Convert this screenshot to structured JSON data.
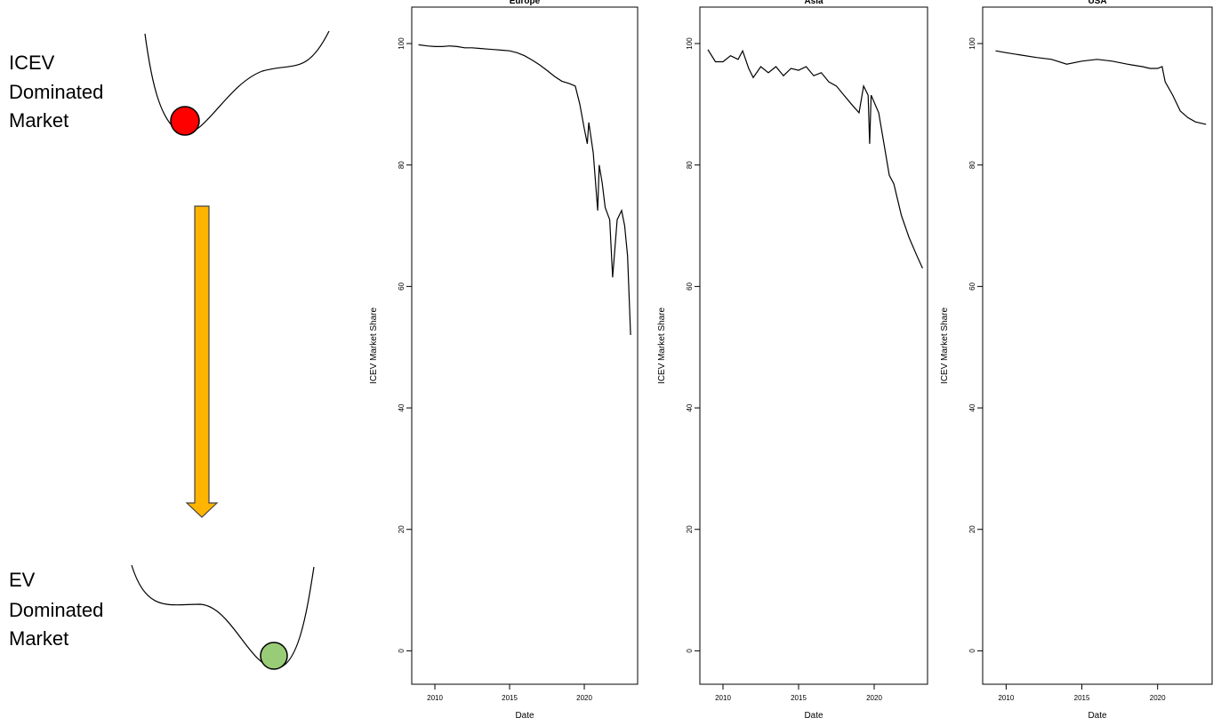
{
  "diagram": {
    "top_label": [
      "ICEV",
      "Dominated",
      "Market"
    ],
    "bottom_label": [
      "EV",
      "Dominated",
      "Market"
    ]
  },
  "chart_data": [
    {
      "type": "line",
      "title": "Europe",
      "x_label": "Date",
      "y_label": "ICEV Market Share",
      "color": "#000000",
      "x": [
        2008.9,
        2009.5,
        2010,
        2010.5,
        2011,
        2011.5,
        2012,
        2012.5,
        2013,
        2013.5,
        2014,
        2014.5,
        2015,
        2015.5,
        2016,
        2016.5,
        2017,
        2017.5,
        2018,
        2018.5,
        2019,
        2019.4,
        2019.7,
        2020.0,
        2020.2,
        2020.3,
        2020.6,
        2020.9,
        2021.0,
        2021.2,
        2021.4,
        2021.7,
        2021.9,
        2022.2,
        2022.5,
        2022.7,
        2022.9,
        2023.1
      ],
      "values": [
        99.8,
        99.6,
        99.5,
        99.5,
        99.6,
        99.5,
        99.3,
        99.3,
        99.2,
        99.1,
        99.0,
        98.9,
        98.8,
        98.5,
        98.0,
        97.3,
        96.5,
        95.6,
        94.6,
        93.8,
        93.4,
        93.0,
        90.0,
        86.0,
        83.5,
        87.0,
        82.0,
        72.5,
        80.0,
        77.0,
        73.0,
        71.0,
        61.5,
        71.0,
        72.5,
        70.0,
        65.0,
        52.0
      ],
      "xlim": [
        2008.45,
        2023.57
      ],
      "ylim": [
        -5.5,
        106
      ],
      "xticks": [
        2010,
        2015,
        2020
      ],
      "yticks": [
        0,
        20,
        40,
        60,
        80,
        100
      ]
    },
    {
      "type": "line",
      "title": "Asia",
      "x_label": "Date",
      "y_label": "ICEV Market Share",
      "color": "#000000",
      "x": [
        2009.0,
        2009.5,
        2010,
        2010.5,
        2011,
        2011.3,
        2011.7,
        2012,
        2012.5,
        2013,
        2013.5,
        2014,
        2014.5,
        2015,
        2015.5,
        2016,
        2016.5,
        2017,
        2017.5,
        2018,
        2018.5,
        2019,
        2019.3,
        2019.6,
        2019.7,
        2019.8,
        2020.3,
        2020.6,
        2021.0,
        2021.3,
        2021.8,
        2022.3,
        2022.8,
        2023.2
      ],
      "values": [
        99.0,
        97.0,
        97.0,
        98.0,
        97.4,
        98.8,
        95.9,
        94.4,
        96.2,
        95.2,
        96.2,
        94.7,
        95.9,
        95.6,
        96.2,
        94.7,
        95.2,
        93.7,
        93.0,
        91.5,
        90.0,
        88.6,
        93.0,
        91.5,
        83.5,
        91.5,
        88.6,
        84.2,
        78.3,
        76.9,
        71.7,
        68.1,
        65.2,
        63.0
      ],
      "xlim": [
        2008.47,
        2023.53
      ],
      "ylim": [
        -5.5,
        106
      ],
      "xticks": [
        2010,
        2015,
        2020
      ],
      "yticks": [
        0,
        20,
        40,
        60,
        80,
        100
      ]
    },
    {
      "type": "line",
      "title": "USA",
      "x_label": "Date",
      "y_label": "ICEV Market Share",
      "color": "#000000",
      "x": [
        2009.3,
        2010,
        2011,
        2012,
        2013,
        2014,
        2015,
        2016,
        2017,
        2018,
        2019,
        2019.5,
        2020,
        2020.3,
        2020.5,
        2021,
        2021.5,
        2022,
        2022.5,
        2023.2
      ],
      "values": [
        98.8,
        98.5,
        98.1,
        97.7,
        97.4,
        96.6,
        97.1,
        97.4,
        97.1,
        96.6,
        96.2,
        95.9,
        95.9,
        96.2,
        93.7,
        91.5,
        88.9,
        87.8,
        87.1,
        86.7
      ],
      "xlim": [
        2008.45,
        2023.6
      ],
      "ylim": [
        -5.5,
        106
      ],
      "xticks": [
        2010,
        2015,
        2020
      ],
      "yticks": [
        0,
        20,
        40,
        60,
        80,
        100
      ]
    }
  ]
}
